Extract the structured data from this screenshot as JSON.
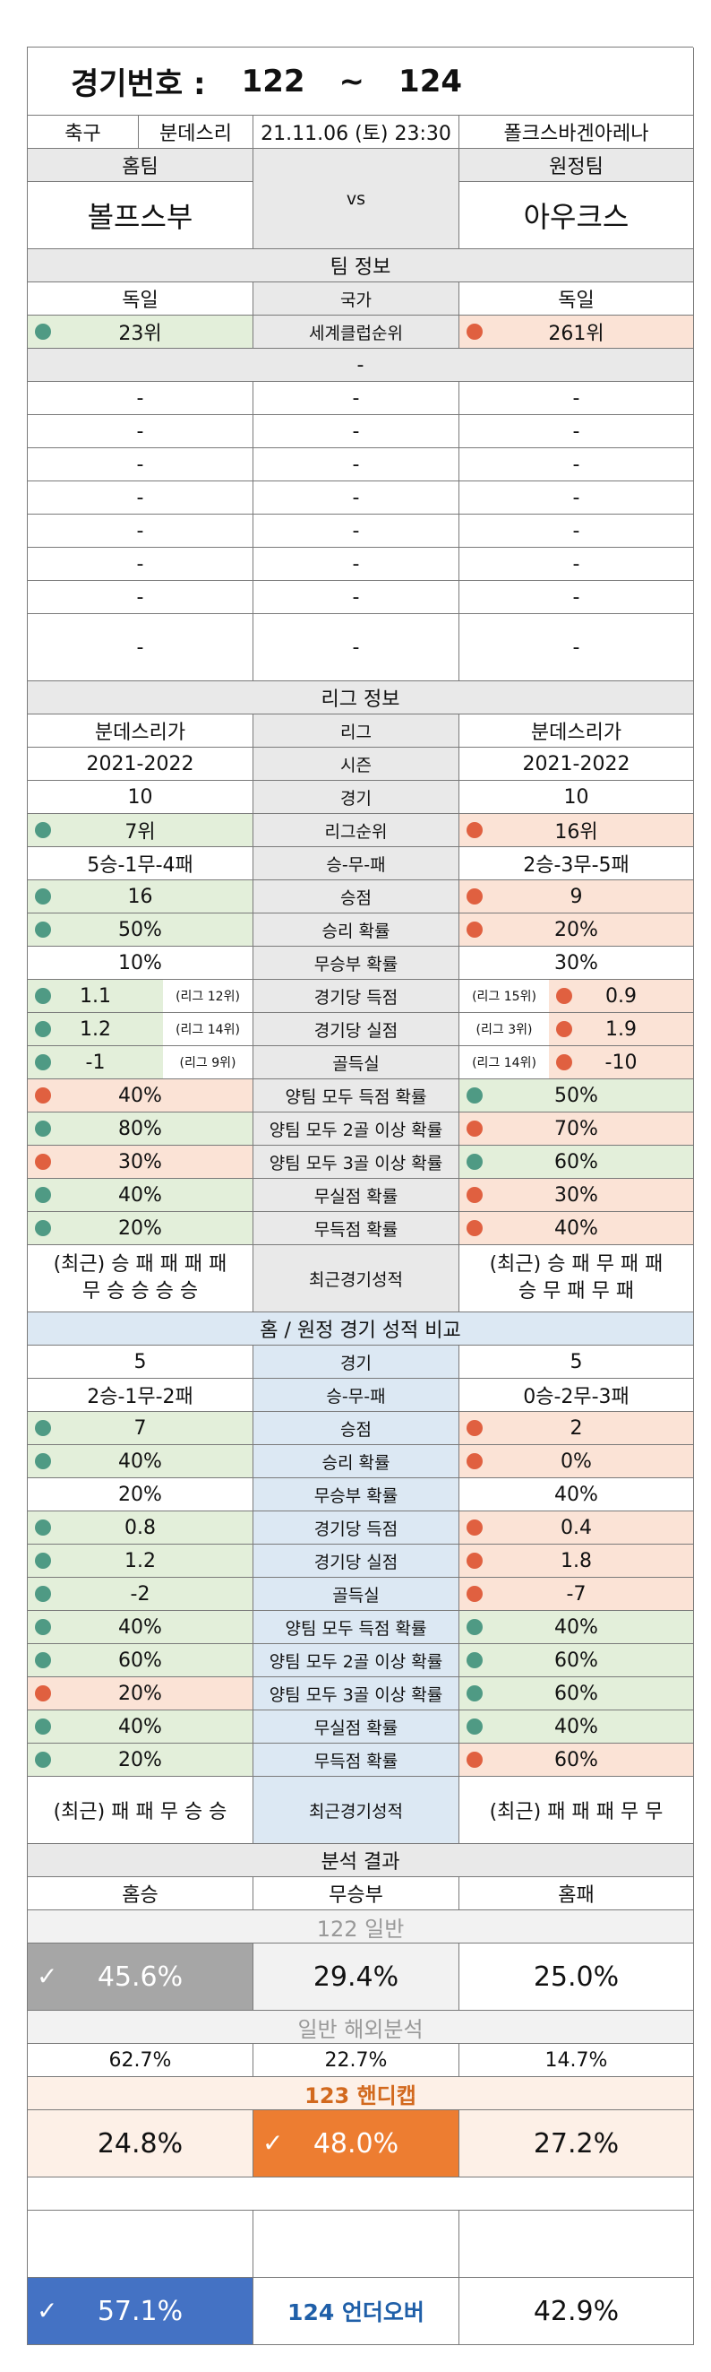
{
  "header": {
    "label": "경기번호 :",
    "from": "122",
    "tilde": "~",
    "to": "124"
  },
  "match": {
    "sport": "축구",
    "league": "분데스리",
    "datetime": "21.11.06 (토) 23:30",
    "venue": "폴크스바겐아레나"
  },
  "teams": {
    "home_label": "홈팀",
    "away_label": "원정팀",
    "home": "볼프스부",
    "vs": "vs",
    "away": "아우크스"
  },
  "team_info": {
    "title": "팀 정보",
    "country_label": "국가",
    "home_country": "독일",
    "away_country": "독일",
    "rank_label": "세계클럽순위",
    "home_rank": "23위",
    "away_rank": "261위",
    "blank_title": "-"
  },
  "blank_rows": [
    [
      "-",
      "-",
      "-"
    ],
    [
      "-",
      "-",
      "-"
    ],
    [
      "-",
      "-",
      "-"
    ],
    [
      "-",
      "-",
      "-"
    ],
    [
      "-",
      "-",
      "-"
    ],
    [
      "-",
      "-",
      "-"
    ],
    [
      "-",
      "-",
      "-"
    ],
    [
      "-",
      "-",
      "-"
    ]
  ],
  "league_info": {
    "title": "리그 정보",
    "rows": [
      {
        "l": "분데스리가",
        "m": "리그",
        "r": "분데스리가"
      },
      {
        "l": "2021-2022",
        "m": "시즌",
        "r": "2021-2022"
      },
      {
        "l": "10",
        "m": "경기",
        "r": "10"
      },
      {
        "l": "7위",
        "m": "리그순위",
        "r": "16위"
      },
      {
        "l": "5승-1무-4패",
        "m": "승-무-패",
        "r": "2승-3무-5패"
      },
      {
        "l": "16",
        "m": "승점",
        "r": "9"
      },
      {
        "l": "50%",
        "m": "승리 확률",
        "r": "20%"
      },
      {
        "l": "10%",
        "m": "무승부 확률",
        "r": "30%"
      },
      {
        "l": "1.1",
        "lr": "(리그 12위)",
        "m": "경기당 득점",
        "rr": "(리그 15위)",
        "r": "0.9"
      },
      {
        "l": "1.2",
        "lr": "(리그 14위)",
        "m": "경기당 실점",
        "rr": "(리그 3위)",
        "r": "1.9"
      },
      {
        "l": "-1",
        "lr": "(리그 9위)",
        "m": "골득실",
        "rr": "(리그 14위)",
        "r": "-10"
      },
      {
        "l": "40%",
        "m": "양팀 모두 득점 확률",
        "r": "50%"
      },
      {
        "l": "80%",
        "m": "양팀 모두 2골 이상 확률",
        "r": "70%"
      },
      {
        "l": "30%",
        "m": "양팀 모두 3골 이상 확률",
        "r": "60%"
      },
      {
        "l": "40%",
        "m": "무실점 확률",
        "r": "30%"
      },
      {
        "l": "20%",
        "m": "무득점 확률",
        "r": "40%"
      }
    ],
    "recent": {
      "l1": "(최근) 승 패 패 패 패",
      "l2": "무 승 승 승 승",
      "m": "최근경기성적",
      "r1": "(최근) 승 패 무 패 패",
      "r2": "승 무 패 무 패"
    }
  },
  "homeaway": {
    "title": "홈 / 원정 경기 성적 비교",
    "rows": [
      {
        "l": "5",
        "m": "경기",
        "r": "5"
      },
      {
        "l": "2승-1무-2패",
        "m": "승-무-패",
        "r": "0승-2무-3패"
      },
      {
        "l": "7",
        "m": "승점",
        "r": "2"
      },
      {
        "l": "40%",
        "m": "승리 확률",
        "r": "0%"
      },
      {
        "l": "20%",
        "m": "무승부 확률",
        "r": "40%"
      },
      {
        "l": "0.8",
        "m": "경기당 득점",
        "r": "0.4"
      },
      {
        "l": "1.2",
        "m": "경기당 실점",
        "r": "1.8"
      },
      {
        "l": "-2",
        "m": "골득실",
        "r": "-7"
      },
      {
        "l": "40%",
        "m": "양팀 모두 득점 확률",
        "r": "40%"
      },
      {
        "l": "60%",
        "m": "양팀 모두 2골 이상 확률",
        "r": "60%"
      },
      {
        "l": "20%",
        "m": "양팀 모두 3골 이상 확률",
        "r": "60%"
      },
      {
        "l": "40%",
        "m": "무실점 확률",
        "r": "40%"
      },
      {
        "l": "20%",
        "m": "무득점 확률",
        "r": "60%"
      }
    ],
    "recent": {
      "l": "(최근) 패 패 무 승 승",
      "m": "최근경기성적",
      "r": "(최근) 패 패 패 무 무"
    }
  },
  "analysis": {
    "title": "분석 결과",
    "home_win": "홈승",
    "draw": "무승부",
    "home_loss": "홈패",
    "general_title": "122 일반",
    "g_home": "45.6%",
    "g_draw": "29.4%",
    "g_away": "25.0%",
    "overseas_title": "일반 해외분석",
    "o_home": "62.7%",
    "o_draw": "22.7%",
    "o_away": "14.7%",
    "handicap_title": "123 핸디캡",
    "h_home": "24.8%",
    "h_draw": "48.0%",
    "h_away": "27.2%",
    "uo_title": "124 언더오버",
    "u_left": "57.1%",
    "u_right": "42.9%",
    "check": "✓"
  },
  "colors": {
    "green": "#e3efda",
    "peach": "#fbe3d6",
    "gray": "#a6a6a6",
    "orange": "#ed7d31",
    "blue": "#4472c4",
    "dot_green": "#4f9a84",
    "dot_red": "#e06040"
  }
}
